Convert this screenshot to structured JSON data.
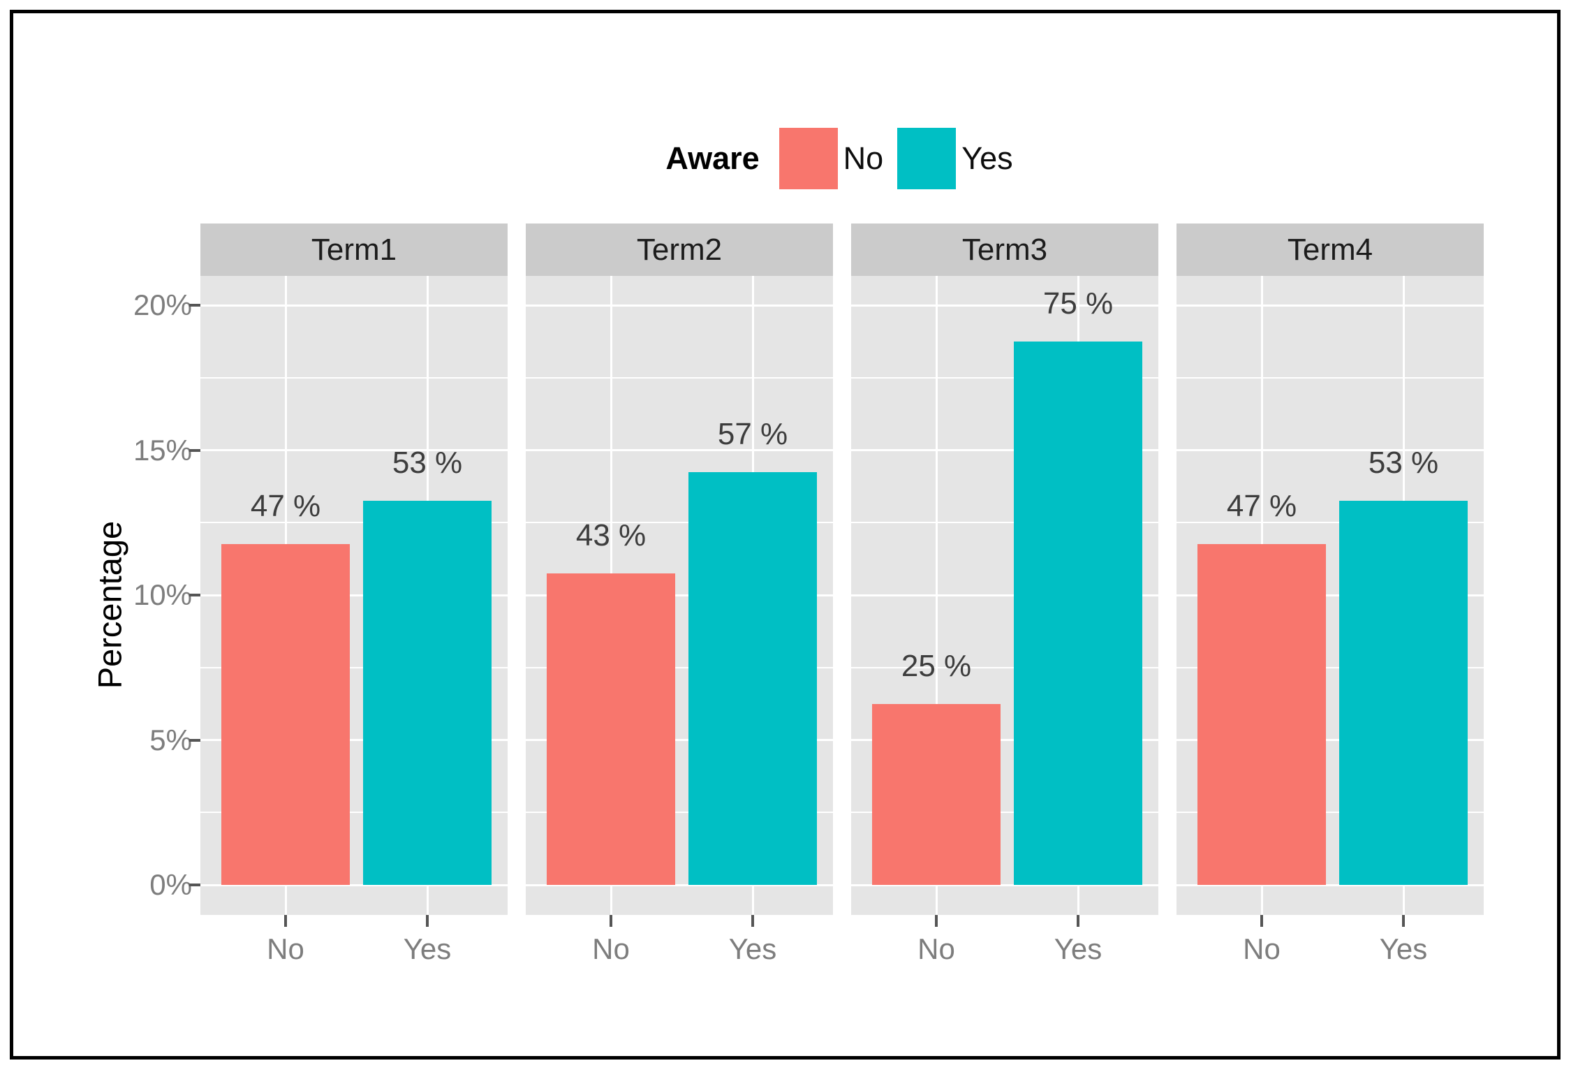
{
  "figure": {
    "background": "#FFFFFF",
    "border_color": "#000000"
  },
  "legend": {
    "title": "Aware",
    "items": [
      {
        "label": "No",
        "color": "#F8766D"
      },
      {
        "label": "Yes",
        "color": "#00BFC4"
      }
    ]
  },
  "chart_data": {
    "type": "bar",
    "title": "",
    "xlabel": "",
    "ylabel": "Percentage",
    "legend_title": "Aware",
    "legend_position": "top",
    "series": [
      "No",
      "Yes"
    ],
    "series_colors": {
      "No": "#F8766D",
      "Yes": "#00BFC4"
    },
    "x_categories": [
      "No",
      "Yes"
    ],
    "facets": [
      {
        "label": "Term1",
        "values": [
          11.75,
          13.25
        ],
        "bar_labels": [
          "47 %",
          "53 %"
        ]
      },
      {
        "label": "Term2",
        "values": [
          10.75,
          14.25
        ],
        "bar_labels": [
          "43 %",
          "57 %"
        ]
      },
      {
        "label": "Term3",
        "values": [
          6.25,
          18.75
        ],
        "bar_labels": [
          "25 %",
          "75 %"
        ]
      },
      {
        "label": "Term4",
        "values": [
          11.75,
          13.25
        ],
        "bar_labels": [
          "47 %",
          "53 %"
        ]
      }
    ],
    "y_ticks": [
      {
        "value": 0,
        "label": "0%"
      },
      {
        "value": 5,
        "label": "5%"
      },
      {
        "value": 10,
        "label": "10%"
      },
      {
        "value": 15,
        "label": "15%"
      },
      {
        "value": 20,
        "label": "20%"
      }
    ],
    "y_minor_ticks": [
      2.5,
      7.5,
      12.5,
      17.5
    ],
    "ylim": [
      -1,
      21
    ],
    "grid": {
      "show": true,
      "color": "#FFFFFF"
    },
    "panel_bg": "#E5E5E5",
    "strip_bg": "#CBCBCB"
  }
}
